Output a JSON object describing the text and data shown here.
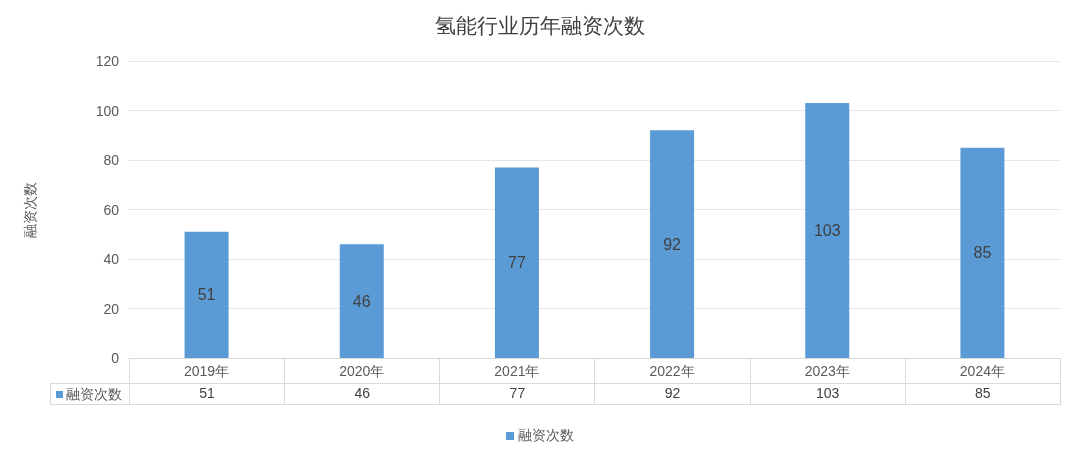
{
  "chart_data": [
    {
      "type": "bar",
      "title": "氢能行业历年融资次数",
      "ylabel": "融资次数",
      "categories": [
        "2019年",
        "2020年",
        "2021年",
        "2022年",
        "2023年",
        "2024年"
      ],
      "series": [
        {
          "name": "融资次数",
          "color": "#5b9bd5",
          "values": [
            51,
            46,
            77,
            92,
            103,
            85
          ],
          "value_labels": [
            "51",
            "46",
            "77",
            "92",
            "103",
            "85"
          ]
        }
      ],
      "ylim": [
        0,
        120
      ],
      "yticks": [
        0,
        20,
        40,
        60,
        80,
        100,
        120
      ],
      "grid": "y",
      "legend": "bottom"
    },
    {
      "type": "other",
      "series": [
        {
          "name": "融资次数",
          "color": "#5b9bd5",
          "values": [
            51,
            46,
            77,
            92,
            103,
            85
          ]
        }
      ],
      "data_labels": true
    }
  ]
}
